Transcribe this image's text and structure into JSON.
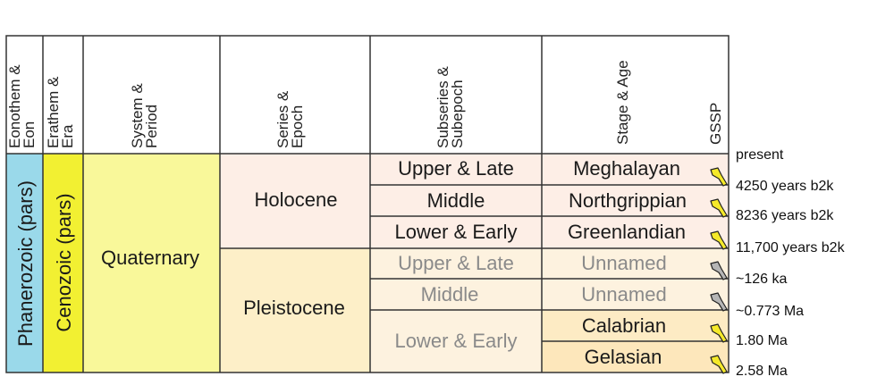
{
  "headers": {
    "eon": "Eonothem & Eon",
    "era": "Erathem & Era",
    "system": "System & Period",
    "series": "Series & Epoch",
    "subseries": "Subseries & Subepoch",
    "stage": "Stage & Age",
    "gssp": "GSSP"
  },
  "eon": {
    "label": "Phanerozoic (pars)",
    "color": "#9ad9ea"
  },
  "era": {
    "label": "Cenozoic (pars)",
    "color": "#f2f032"
  },
  "system": {
    "label": "Quaternary",
    "color": "#f9f89a"
  },
  "series": [
    {
      "label": "Holocene",
      "color": "#fdeee6"
    },
    {
      "label": "Pleistocene",
      "color": "#fdefc8"
    }
  ],
  "subseries": [
    {
      "label": "Upper & Late",
      "muted": false,
      "color": "#fdeee6"
    },
    {
      "label": "Middle",
      "muted": false,
      "color": "#fdeee6"
    },
    {
      "label": "Lower & Early",
      "muted": false,
      "color": "#fdeee6"
    },
    {
      "label": "Upper & Late",
      "muted": true,
      "color": "#fdf2df"
    },
    {
      "label": "Middle",
      "muted": true,
      "color": "#fdf2df"
    },
    {
      "label": "Lower & Early",
      "muted": true,
      "color": "#fdf2df"
    }
  ],
  "stages": [
    {
      "label": "Meghalayan",
      "muted": false,
      "color": "#fdeee6",
      "spike": "golden"
    },
    {
      "label": "Northgrippian",
      "muted": false,
      "color": "#fdeee6",
      "spike": "golden"
    },
    {
      "label": "Greenlandian",
      "muted": false,
      "color": "#fdeee6",
      "spike": "golden"
    },
    {
      "label": "Unnamed",
      "muted": true,
      "color": "#fdf2df",
      "spike": "grey"
    },
    {
      "label": "Unnamed",
      "muted": true,
      "color": "#fdf2df",
      "spike": "grey"
    },
    {
      "label": "Calabrian",
      "muted": false,
      "color": "#fdebc4",
      "spike": "golden"
    },
    {
      "label": "Gelasian",
      "muted": false,
      "color": "#fde7bb",
      "spike": "golden"
    }
  ],
  "ages": [
    "present",
    "4250 years b2k",
    "8236 years b2k",
    "11,700 years b2k",
    "~126 ka",
    "~0.773 Ma",
    "1.80 Ma",
    "2.58 Ma"
  ],
  "spike_colors": {
    "golden": "#f5e92a",
    "grey": "#b5b5b5"
  }
}
